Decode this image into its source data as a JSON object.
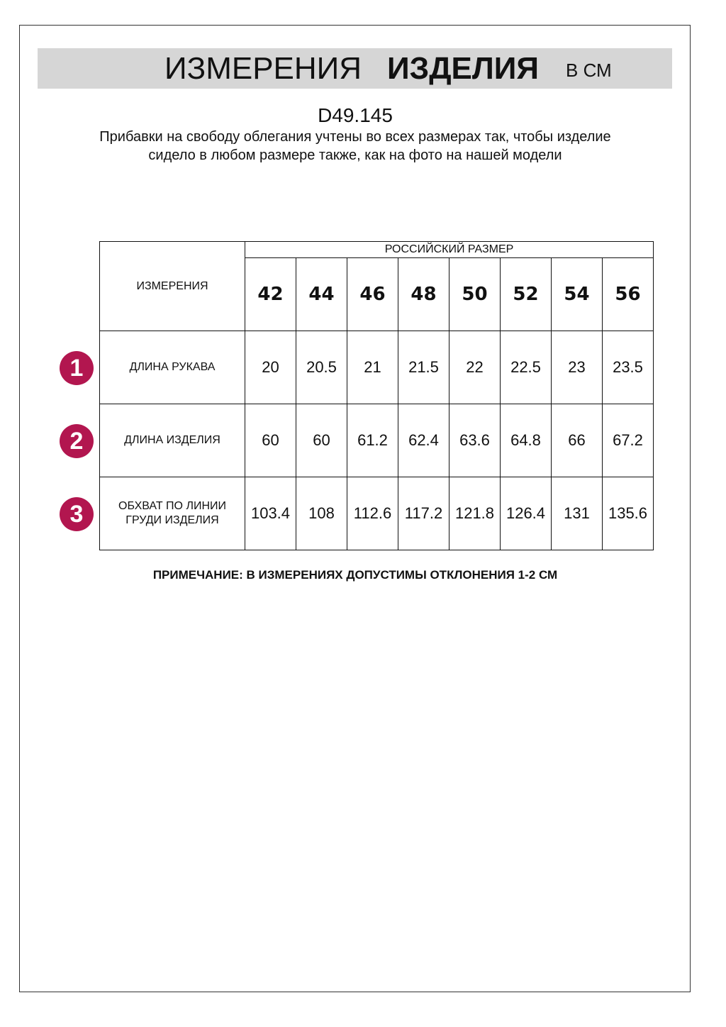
{
  "header": {
    "title_regular": "ИЗМЕРЕНИЯ",
    "title_bold": "ИЗДЕЛИЯ",
    "unit": "В СМ"
  },
  "product_code": "D49.145",
  "description": "Прибавки на свободу облегания учтены во всех размерах так, чтобы изделие сидело в любом размере также, как на фото на нашей модели",
  "table": {
    "row_header": "ИЗМЕРЕНИЯ",
    "group_header": "РОССИЙСКИЙ РАЗМЕР",
    "sizes": [
      "42",
      "44",
      "46",
      "48",
      "50",
      "52",
      "54",
      "56"
    ],
    "rows": [
      {
        "num": "1",
        "label": "ДЛИНА РУКАВА",
        "values": [
          "20",
          "20.5",
          "21",
          "21.5",
          "22",
          "22.5",
          "23",
          "23.5"
        ]
      },
      {
        "num": "2",
        "label": "ДЛИНА ИЗДЕЛИЯ",
        "values": [
          "60",
          "60",
          "61.2",
          "62.4",
          "63.6",
          "64.8",
          "66",
          "67.2"
        ]
      },
      {
        "num": "3",
        "label": "ОБХВАТ ПО ЛИНИИ ГРУДИ ИЗДЕЛИЯ",
        "values": [
          "103.4",
          "108",
          "112.6",
          "117.2",
          "121.8",
          "126.4",
          "131",
          "135.6"
        ]
      }
    ]
  },
  "note": "ПРИМЕЧАНИЕ: В ИЗМЕРЕНИЯХ ДОПУСТИМЫ ОТКЛОНЕНИЯ 1-2 СМ",
  "colors": {
    "badge": "#b2164f",
    "banner": "#d6d6d6"
  }
}
